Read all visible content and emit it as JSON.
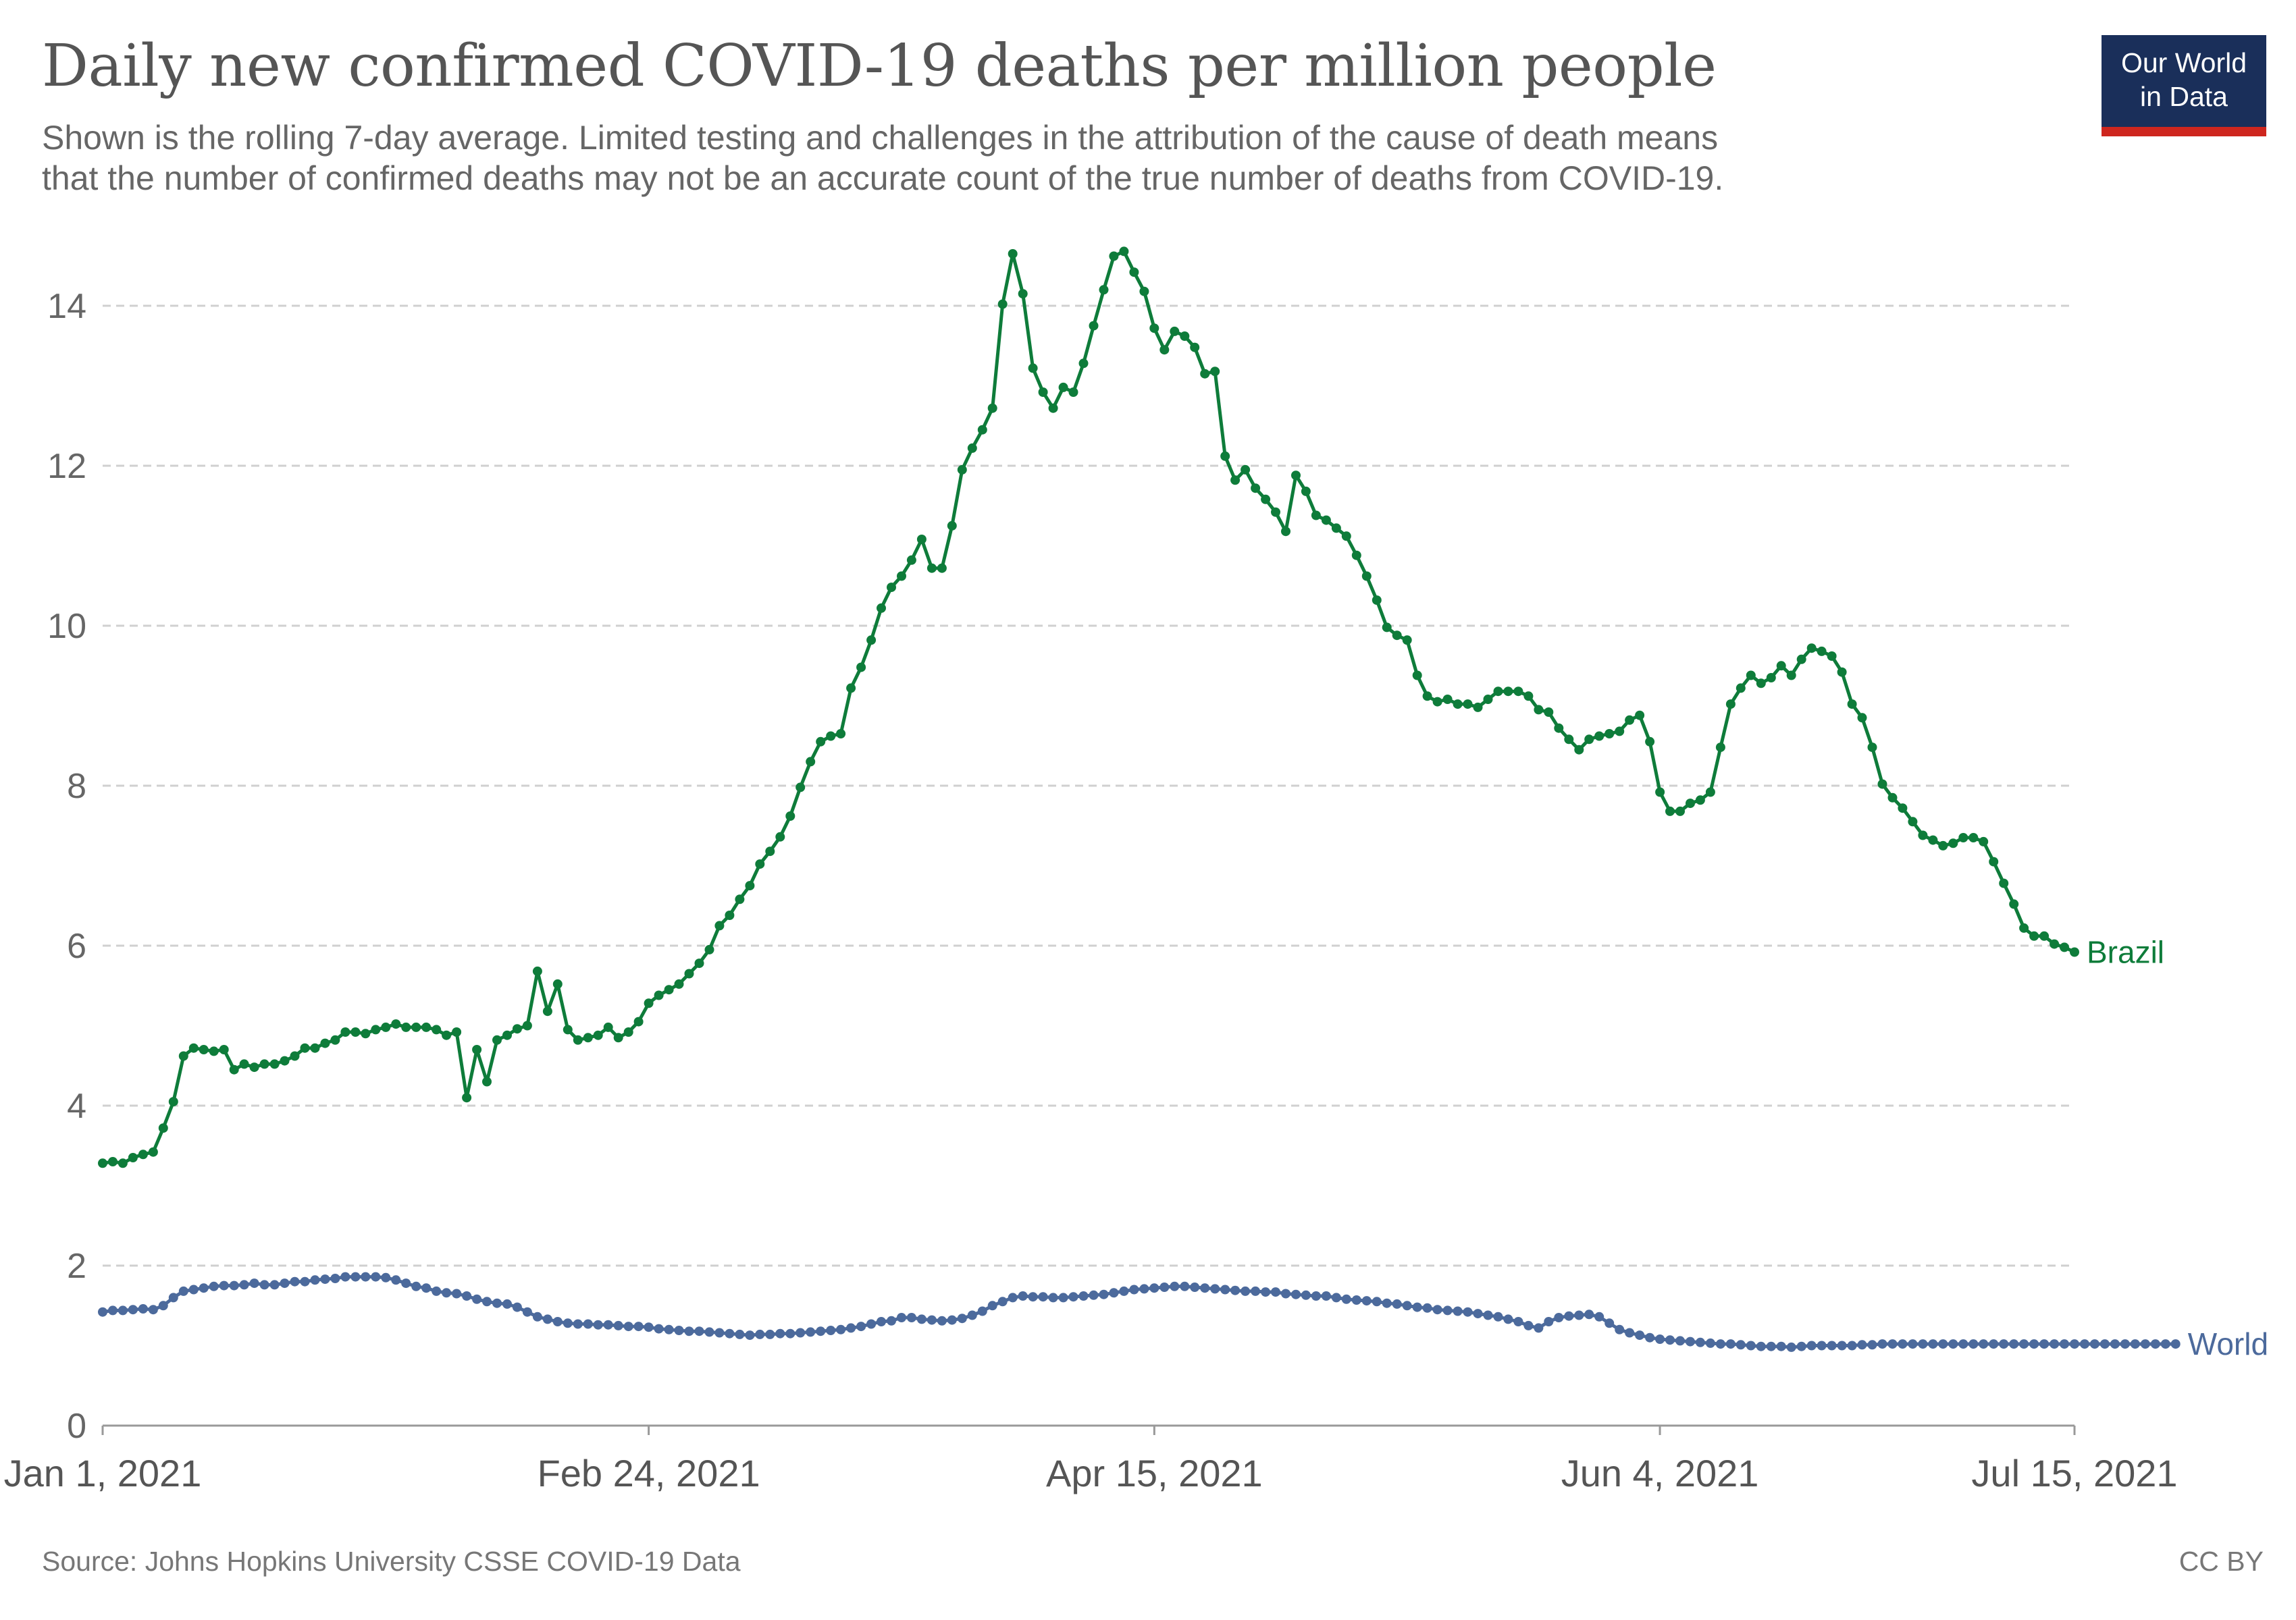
{
  "title": "Daily new confirmed COVID-19 deaths per million people",
  "subtitle_line1": "Shown is the rolling 7-day average. Limited testing and challenges in the attribution of the cause of death means",
  "subtitle_line2": "that the number of confirmed deaths may not be an accurate count of the true number of deaths from COVID-19.",
  "logo": {
    "line1": "Our World",
    "line2": "in Data",
    "bg_color": "#1a2f5a",
    "accent_color": "#ce261e"
  },
  "source": "Source: Johns Hopkins University CSSE COVID-19 Data",
  "license": "CC BY",
  "chart_data": {
    "type": "line",
    "title": "Daily new confirmed COVID-19 deaths per million people",
    "xlabel": "",
    "ylabel": "",
    "x_range": [
      "2021-01-01",
      "2021-07-15"
    ],
    "ylim": [
      0,
      14
    ],
    "y_ticks": [
      0,
      2,
      4,
      6,
      8,
      10,
      12,
      14
    ],
    "x_ticks": [
      {
        "date": "2021-01-01",
        "label": "Jan 1, 2021"
      },
      {
        "date": "2021-02-24",
        "label": "Feb 24, 2021"
      },
      {
        "date": "2021-04-15",
        "label": "Apr 15, 2021"
      },
      {
        "date": "2021-06-04",
        "label": "Jun 4, 2021"
      },
      {
        "date": "2021-07-15",
        "label": "Jul 15, 2021"
      }
    ],
    "grid": "horizontal dashed",
    "legend": "inline labels at line ends",
    "series": [
      {
        "name": "Brazil",
        "color": "#0e7c3a",
        "x_start": "2021-01-01",
        "interval_days": 1,
        "values": [
          3.28,
          3.3,
          3.28,
          3.35,
          3.39,
          3.42,
          3.72,
          4.05,
          4.62,
          4.72,
          4.7,
          4.68,
          4.7,
          4.45,
          4.52,
          4.48,
          4.52,
          4.52,
          4.56,
          4.62,
          4.72,
          4.72,
          4.78,
          4.82,
          4.92,
          4.92,
          4.9,
          4.95,
          4.98,
          5.02,
          4.98,
          4.98,
          4.98,
          4.95,
          4.88,
          4.92,
          4.1,
          4.7,
          4.3,
          4.82,
          4.88,
          4.96,
          5.0,
          5.68,
          5.18,
          5.52,
          4.95,
          4.82,
          4.85,
          4.88,
          4.98,
          4.85,
          4.92,
          5.05,
          5.28,
          5.38,
          5.45,
          5.52,
          5.65,
          5.78,
          5.95,
          6.25,
          6.38,
          6.58,
          6.75,
          7.02,
          7.18,
          7.36,
          7.62,
          7.98,
          8.3,
          8.55,
          8.62,
          8.65,
          9.22,
          9.48,
          9.82,
          10.22,
          10.48,
          10.62,
          10.82,
          11.08,
          10.72,
          10.72,
          11.25,
          11.95,
          12.22,
          12.45,
          12.72,
          14.02,
          14.65,
          14.15,
          13.22,
          12.92,
          12.72,
          12.98,
          12.92,
          13.28,
          13.75,
          14.2,
          14.62,
          14.68,
          14.42,
          14.18,
          13.72,
          13.45,
          13.68,
          13.62,
          13.48,
          13.15,
          13.18,
          12.12,
          11.82,
          11.95,
          11.72,
          11.58,
          11.42,
          11.18,
          11.88,
          11.68,
          11.38,
          11.32,
          11.22,
          11.12,
          10.88,
          10.62,
          10.32,
          9.98,
          9.88,
          9.82,
          9.38,
          9.12,
          9.05,
          9.08,
          9.02,
          9.02,
          8.98,
          9.08,
          9.18,
          9.18,
          9.18,
          9.12,
          8.95,
          8.92,
          8.72,
          8.58,
          8.45,
          8.58,
          8.62,
          8.65,
          8.68,
          8.82,
          8.88,
          8.55,
          7.92,
          7.68,
          7.68,
          7.78,
          7.82,
          7.92,
          8.48,
          9.02,
          9.22,
          9.38,
          9.28,
          9.35,
          9.5,
          9.38,
          9.58,
          9.72,
          9.68,
          9.62,
          9.42,
          9.02,
          8.85,
          8.48,
          8.02,
          7.85,
          7.72,
          7.55,
          7.38,
          7.32,
          7.25,
          7.28,
          7.35,
          7.35,
          7.3,
          7.05,
          6.78,
          6.52,
          6.22,
          6.12,
          6.12,
          6.02,
          5.98,
          5.92
        ]
      },
      {
        "name": "World",
        "color": "#4c6a9c",
        "x_start": "2021-01-01",
        "interval_days": 1,
        "values": [
          1.42,
          1.44,
          1.44,
          1.45,
          1.46,
          1.45,
          1.5,
          1.6,
          1.68,
          1.7,
          1.72,
          1.74,
          1.75,
          1.75,
          1.76,
          1.78,
          1.76,
          1.76,
          1.78,
          1.8,
          1.8,
          1.82,
          1.83,
          1.84,
          1.86,
          1.86,
          1.86,
          1.86,
          1.85,
          1.82,
          1.78,
          1.74,
          1.72,
          1.68,
          1.66,
          1.65,
          1.62,
          1.58,
          1.55,
          1.53,
          1.52,
          1.48,
          1.42,
          1.36,
          1.33,
          1.3,
          1.28,
          1.27,
          1.27,
          1.26,
          1.26,
          1.25,
          1.24,
          1.24,
          1.23,
          1.21,
          1.2,
          1.19,
          1.18,
          1.18,
          1.17,
          1.16,
          1.15,
          1.14,
          1.13,
          1.14,
          1.14,
          1.15,
          1.15,
          1.16,
          1.17,
          1.18,
          1.19,
          1.2,
          1.22,
          1.24,
          1.27,
          1.3,
          1.31,
          1.35,
          1.35,
          1.33,
          1.32,
          1.31,
          1.32,
          1.34,
          1.38,
          1.43,
          1.5,
          1.55,
          1.6,
          1.62,
          1.61,
          1.61,
          1.6,
          1.6,
          1.61,
          1.62,
          1.63,
          1.64,
          1.66,
          1.68,
          1.7,
          1.71,
          1.72,
          1.73,
          1.74,
          1.74,
          1.73,
          1.72,
          1.71,
          1.7,
          1.69,
          1.68,
          1.68,
          1.67,
          1.67,
          1.65,
          1.64,
          1.63,
          1.62,
          1.62,
          1.6,
          1.58,
          1.57,
          1.56,
          1.55,
          1.53,
          1.52,
          1.5,
          1.48,
          1.47,
          1.45,
          1.44,
          1.43,
          1.42,
          1.4,
          1.38,
          1.36,
          1.33,
          1.3,
          1.25,
          1.22,
          1.3,
          1.35,
          1.37,
          1.38,
          1.39,
          1.36,
          1.28,
          1.2,
          1.16,
          1.13,
          1.1,
          1.08,
          1.07,
          1.06,
          1.05,
          1.04,
          1.03,
          1.02,
          1.02,
          1.01,
          1.0,
          0.99,
          0.99,
          0.99,
          0.98,
          0.99,
          1.0,
          1.0,
          1.0,
          1.0,
          1.0,
          1.01,
          1.01,
          1.02,
          1.02,
          1.02,
          1.02,
          1.02,
          1.02,
          1.02,
          1.02,
          1.02,
          1.02,
          1.02,
          1.02,
          1.02,
          1.02,
          1.02,
          1.02,
          1.02,
          1.02,
          1.02,
          1.02,
          1.02,
          1.02,
          1.02,
          1.02,
          1.02,
          1.02,
          1.02,
          1.02,
          1.02,
          1.02
        ]
      }
    ]
  }
}
